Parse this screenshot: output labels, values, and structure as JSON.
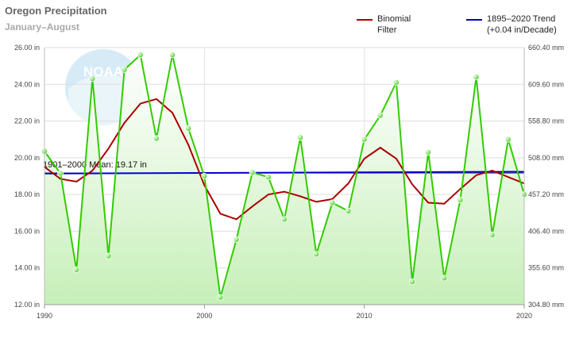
{
  "title": "Oregon Precipitation",
  "subtitle": "January–August",
  "legend": [
    {
      "label": "Binomial\nFilter",
      "color": "#aa0000"
    },
    {
      "label": "1895–2020 Trend\n(+0.04 in/Decade)",
      "color": "#0000cc"
    }
  ],
  "colors": {
    "observed": "#33cc00",
    "observed_fill": "#ccf0c0",
    "filter": "#aa0000",
    "trend": "#0000cc",
    "mean": "#333333"
  },
  "chart_data": {
    "type": "line",
    "title": "Oregon Precipitation",
    "subtitle": "January–August",
    "xlim": [
      1990,
      2020
    ],
    "ylim": [
      12,
      26
    ],
    "xticks": [
      1990,
      2000,
      2010,
      2020
    ],
    "xtick_labels": [
      "1990",
      "2000",
      "2010",
      "2020"
    ],
    "yticks_left": [
      12,
      14,
      16,
      18,
      20,
      22,
      24,
      26
    ],
    "ytick_labels_left": [
      "12.00 in",
      "14.00 in",
      "16.00 in",
      "18.00 in",
      "20.00 in",
      "22.00 in",
      "24.00 in",
      "26.00 in"
    ],
    "yticks_right_values": [
      12,
      14,
      16,
      18,
      20,
      22,
      24,
      26
    ],
    "ytick_labels_right": [
      "304.80 mm",
      "355.60 mm",
      "406.40 mm",
      "457.20 mm",
      "508.00 mm",
      "558.80 mm",
      "609.60 mm",
      "660.40 mm"
    ],
    "grid": true,
    "legend_position": "top-right",
    "series": [
      {
        "name": "",
        "kind": "observed",
        "x": [
          1990,
          1991,
          1992,
          1993,
          1994,
          1995,
          1996,
          1997,
          1998,
          1999,
          2000,
          2001,
          2002,
          2003,
          2004,
          2005,
          2006,
          2007,
          2008,
          2009,
          2010,
          2011,
          2012,
          2013,
          2014,
          2015,
          2016,
          2017,
          2018,
          2019,
          2020
        ],
        "values": [
          20.35,
          19.15,
          13.9,
          24.3,
          14.65,
          24.8,
          25.6,
          21.05,
          25.6,
          21.6,
          19.0,
          12.4,
          15.55,
          19.2,
          18.95,
          16.65,
          21.1,
          14.75,
          17.55,
          17.1,
          21.0,
          22.3,
          24.1,
          13.25,
          20.3,
          13.45,
          17.7,
          24.4,
          15.8,
          21.0,
          18.0
        ]
      },
      {
        "name": "Binomial Filter",
        "kind": "filter",
        "x": [
          1990,
          1991,
          1992,
          1993,
          1994,
          1995,
          1996,
          1997,
          1998,
          1999,
          2000,
          2001,
          2002,
          2003,
          2004,
          2005,
          2006,
          2007,
          2008,
          2009,
          2010,
          2011,
          2012,
          2013,
          2014,
          2015,
          2016,
          2017,
          2018,
          2019,
          2020
        ],
        "values": [
          19.5,
          18.85,
          18.7,
          19.3,
          20.5,
          21.9,
          22.95,
          23.2,
          22.45,
          20.7,
          18.5,
          16.95,
          16.65,
          17.35,
          18.0,
          18.15,
          17.9,
          17.6,
          17.75,
          18.6,
          19.95,
          20.55,
          19.95,
          18.55,
          17.55,
          17.5,
          18.3,
          19.05,
          19.3,
          18.95,
          18.6
        ]
      },
      {
        "name": "1895–2020 Trend",
        "kind": "trend",
        "x": [
          1990,
          2020
        ],
        "values": [
          19.14,
          19.24
        ]
      }
    ],
    "annotations": [
      {
        "text": "1901–2000 Mean: 19.17 in",
        "value": 19.17
      }
    ]
  }
}
